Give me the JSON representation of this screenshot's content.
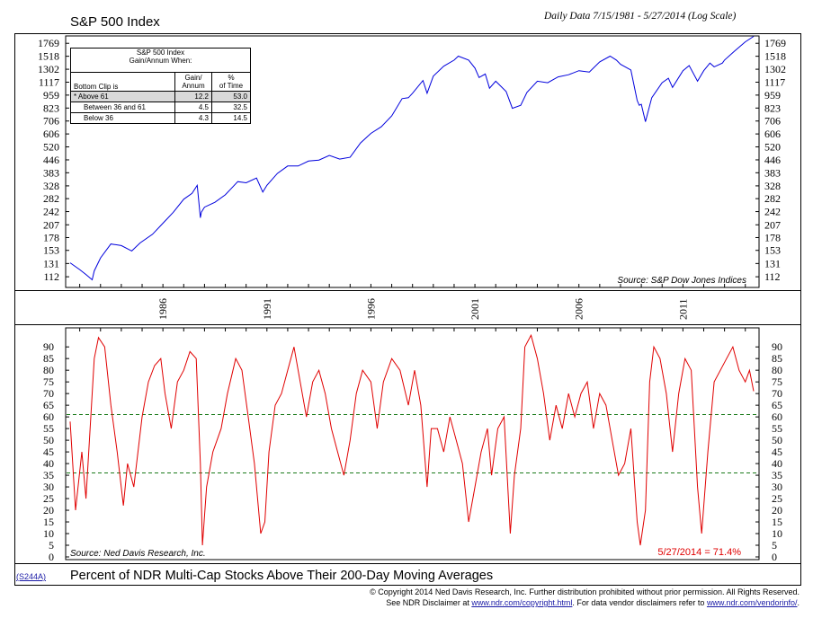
{
  "header": {
    "title": "S&P 500 Index",
    "subtitle": "Daily Data 7/15/1981 - 5/27/2014 (Log Scale)"
  },
  "stats_table": {
    "caption_line1": "S&P 500 Index",
    "caption_line2": "Gain/Annum When:",
    "col1_header": "Bottom Clip is",
    "col2_header_line1": "Gain/",
    "col2_header_line2": "Annum",
    "col3_header_line1": "%",
    "col3_header_line2": "of Time",
    "rows": [
      {
        "label": "* Above 61",
        "gain": "12.2",
        "pct": "53.0"
      },
      {
        "label": "Between 36 and 61",
        "gain": "4.5",
        "pct": "32.5"
      },
      {
        "label": "Below 36",
        "gain": "4.3",
        "pct": "14.5"
      }
    ]
  },
  "top_source": "Source: S&P Dow Jones Indices",
  "bottom_source": "Source: Ned Davis Research, Inc.",
  "latest_reading": "5/27/2014 = 71.4%",
  "footer": {
    "code": "(S244A)",
    "title": "Percent of NDR Multi-Cap Stocks Above Their 200-Day Moving Averages",
    "copyright": "© Copyright 2014 Ned Davis Research, Inc.  Further distribution prohibited without prior permission.  All Rights Reserved.",
    "disclaimer_pre": "See NDR Disclaimer at ",
    "disclaimer_link1": "www.ndr.com/copyright.html",
    "disclaimer_mid": ". For data vendor disclaimers refer to ",
    "disclaimer_link2": "www.ndr.com/vendorinfo/",
    "disclaimer_post": "."
  },
  "colors": {
    "sp500": "#0000dd",
    "breadth": "#e00000",
    "threshold": "#1a7a1a"
  },
  "chart_data": [
    {
      "type": "line",
      "title": "S&P 500 Index",
      "y_scale": "log",
      "ylim": [
        103,
        1850
      ],
      "xlim": [
        1981.54,
        2014.4
      ],
      "y_ticks": [
        "1769",
        "1518",
        "1302",
        "1117",
        "959",
        "823",
        "706",
        "606",
        "520",
        "446",
        "383",
        "328",
        "282",
        "242",
        "207",
        "178",
        "153",
        "131",
        "112"
      ],
      "x_ticks": [
        "1986",
        "1991",
        "1996",
        "2001",
        "2006",
        "2011"
      ],
      "series": [
        {
          "color_key": "sp500",
          "x": [
            1981.54,
            1982.0,
            1982.3,
            1982.6,
            1982.7,
            1983.0,
            1983.5,
            1984.0,
            1984.5,
            1984.9,
            1985.5,
            1986.0,
            1986.5,
            1987.0,
            1987.4,
            1987.65,
            1987.8,
            1987.85,
            1988.0,
            1988.5,
            1989.0,
            1989.6,
            1990.0,
            1990.5,
            1990.8,
            1991.0,
            1991.5,
            1992.0,
            1992.5,
            1993.0,
            1993.5,
            1994.0,
            1994.5,
            1995.0,
            1995.5,
            1996.0,
            1996.5,
            1997.0,
            1997.5,
            1997.8,
            1998.0,
            1998.5,
            1998.7,
            1999.0,
            1999.5,
            2000.0,
            2000.2,
            2000.7,
            2001.0,
            2001.2,
            2001.5,
            2001.7,
            2002.0,
            2002.5,
            2002.8,
            2003.2,
            2003.5,
            2004.0,
            2004.5,
            2005.0,
            2005.5,
            2006.0,
            2006.5,
            2007.0,
            2007.5,
            2007.8,
            2008.0,
            2008.5,
            2008.8,
            2008.9,
            2009.0,
            2009.2,
            2009.5,
            2010.0,
            2010.3,
            2010.5,
            2011.0,
            2011.3,
            2011.7,
            2012.0,
            2012.3,
            2012.5,
            2012.9,
            2013.0,
            2013.5,
            2014.0,
            2014.4
          ],
          "values": [
            132,
            122,
            115,
            108,
            120,
            140,
            165,
            162,
            152,
            167,
            185,
            211,
            240,
            280,
            300,
            330,
            225,
            240,
            255,
            270,
            295,
            345,
            340,
            360,
            305,
            330,
            380,
            415,
            415,
            440,
            445,
            470,
            450,
            460,
            545,
            610,
            660,
            750,
            920,
            930,
            980,
            1140,
            980,
            1200,
            1350,
            1450,
            1520,
            1450,
            1320,
            1180,
            1230,
            1040,
            1130,
            1000,
            820,
            850,
            990,
            1130,
            1110,
            1190,
            1220,
            1280,
            1260,
            1420,
            1520,
            1450,
            1380,
            1290,
            900,
            850,
            860,
            700,
            930,
            1110,
            1170,
            1050,
            1280,
            1360,
            1130,
            1280,
            1400,
            1340,
            1400,
            1450,
            1620,
            1800,
            1920
          ]
        }
      ]
    },
    {
      "type": "line",
      "title": "Percent of NDR Multi-Cap Stocks Above Their 200-Day Moving Averages",
      "ylim": [
        0,
        97
      ],
      "xlim": [
        1981.54,
        2014.4
      ],
      "y_ticks": [
        "90",
        "85",
        "80",
        "75",
        "70",
        "65",
        "60",
        "55",
        "50",
        "45",
        "40",
        "35",
        "30",
        "25",
        "20",
        "15",
        "10",
        "5",
        "0"
      ],
      "thresholds": [
        61,
        36
      ],
      "series": [
        {
          "color_key": "breadth",
          "x": [
            1981.54,
            1981.8,
            1982.1,
            1982.3,
            1982.5,
            1982.7,
            1982.9,
            1983.2,
            1983.5,
            1983.8,
            1984.1,
            1984.3,
            1984.6,
            1985.0,
            1985.3,
            1985.6,
            1985.9,
            1986.1,
            1986.4,
            1986.7,
            1987.0,
            1987.3,
            1987.6,
            1987.8,
            1987.9,
            1988.1,
            1988.4,
            1988.8,
            1989.1,
            1989.5,
            1989.8,
            1990.1,
            1990.4,
            1990.7,
            1990.9,
            1991.1,
            1991.4,
            1991.7,
            1992.0,
            1992.3,
            1992.6,
            1992.9,
            1993.2,
            1993.5,
            1993.8,
            1994.1,
            1994.4,
            1994.7,
            1995.0,
            1995.3,
            1995.6,
            1996.0,
            1996.3,
            1996.6,
            1997.0,
            1997.4,
            1997.8,
            1998.1,
            1998.4,
            1998.7,
            1998.9,
            1999.2,
            1999.5,
            1999.8,
            2000.1,
            2000.4,
            2000.7,
            2001.0,
            2001.3,
            2001.6,
            2001.8,
            2002.1,
            2002.4,
            2002.7,
            2002.9,
            2003.2,
            2003.4,
            2003.7,
            2004.0,
            2004.3,
            2004.6,
            2004.9,
            2005.2,
            2005.5,
            2005.8,
            2006.1,
            2006.4,
            2006.7,
            2007.0,
            2007.3,
            2007.6,
            2007.9,
            2008.2,
            2008.5,
            2008.8,
            2008.95,
            2009.2,
            2009.4,
            2009.6,
            2009.9,
            2010.2,
            2010.5,
            2010.8,
            2011.1,
            2011.4,
            2011.7,
            2011.9,
            2012.2,
            2012.5,
            2012.8,
            2013.1,
            2013.4,
            2013.7,
            2014.0,
            2014.2,
            2014.4
          ],
          "values": [
            58,
            20,
            45,
            25,
            55,
            85,
            94,
            90,
            65,
            45,
            22,
            40,
            30,
            60,
            75,
            82,
            85,
            70,
            55,
            75,
            80,
            88,
            85,
            40,
            5,
            30,
            45,
            55,
            70,
            85,
            80,
            60,
            40,
            10,
            15,
            45,
            65,
            70,
            80,
            90,
            75,
            60,
            75,
            80,
            70,
            55,
            45,
            35,
            50,
            70,
            80,
            75,
            55,
            75,
            85,
            80,
            65,
            80,
            65,
            30,
            55,
            55,
            45,
            60,
            50,
            40,
            15,
            30,
            45,
            55,
            35,
            55,
            60,
            10,
            35,
            55,
            90,
            95,
            85,
            70,
            50,
            65,
            55,
            70,
            60,
            70,
            75,
            55,
            70,
            65,
            50,
            35,
            40,
            55,
            15,
            5,
            20,
            75,
            90,
            85,
            70,
            45,
            70,
            85,
            80,
            30,
            10,
            45,
            75,
            80,
            85,
            90,
            80,
            75,
            80,
            71
          ]
        }
      ]
    }
  ]
}
